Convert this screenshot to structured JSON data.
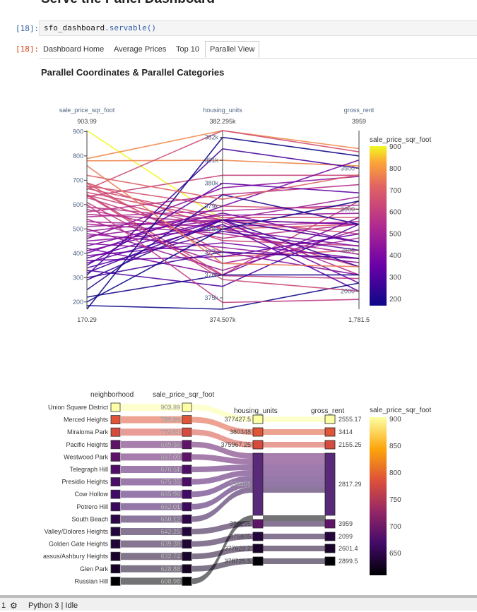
{
  "notebook": {
    "heading": "Serve the Panel Dashboard",
    "in_prompt": "[18]:",
    "out_prompt": "[18]:",
    "code_var": "sfo_dashboard",
    "code_fn": ".servable()"
  },
  "tabs": [
    {
      "label": "Dashboard Home"
    },
    {
      "label": "Average Prices"
    },
    {
      "label": "Top 10"
    },
    {
      "label": "Parallel View",
      "active": true
    }
  ],
  "section_title": "Parallel Coordinates & Parallel Categories",
  "colors": {
    "tab_border": "#cccccc",
    "prompt_in": "#305fa8",
    "prompt_out": "#d84315"
  },
  "chart_data": [
    {
      "type": "parallel_coordinates",
      "colorscale": "plasma",
      "dimensions": [
        {
          "label": "sale_price_sqr_foot",
          "max_label": "903.99",
          "min_label": "170.29",
          "range": [
            170.29,
            903.99
          ],
          "ticks": [
            200,
            300,
            400,
            500,
            600,
            700,
            800,
            900
          ]
        },
        {
          "label": "housing_units",
          "max_label": "382.295k",
          "min_label": "374.507k",
          "range": [
            374507,
            382295
          ],
          "ticks": [
            "375k",
            "376k",
            "377k",
            "378k",
            "379k",
            "380k",
            "381k",
            "382k"
          ]
        },
        {
          "label": "gross_rent",
          "max_label": "3959",
          "min_label": "1,781.5",
          "range": [
            1781.5,
            3959
          ],
          "ticks": [
            2000,
            2500,
            3000,
            3500
          ]
        }
      ],
      "colorbar": {
        "title": "sale_price_sqr_foot",
        "ticks": [
          200,
          300,
          400,
          500,
          600,
          700,
          800,
          900
        ]
      },
      "lines": [
        [
          903.99,
          378401,
          2817.29
        ],
        [
          788.84,
          382295,
          3739
        ],
        [
          779.81,
          381000,
          3528
        ],
        [
          689.56,
          378000,
          2817
        ],
        [
          687.09,
          376800,
          2500
        ],
        [
          676.51,
          379000,
          3000
        ],
        [
          675.35,
          377000,
          2400
        ],
        [
          665.96,
          378500,
          2900
        ],
        [
          662.01,
          382295,
          3700
        ],
        [
          650.12,
          378401,
          2700
        ],
        [
          642.25,
          376000,
          3100
        ],
        [
          639.39,
          378000,
          2300
        ],
        [
          632.74,
          380348,
          3414
        ],
        [
          628.88,
          377500,
          2555
        ],
        [
          608.98,
          375967,
          2155
        ],
        [
          590,
          378401,
          2600
        ],
        [
          580,
          377600,
          2817
        ],
        [
          570,
          379500,
          3300
        ],
        [
          560,
          378300,
          2200
        ],
        [
          550,
          378800,
          3050
        ],
        [
          540,
          376500,
          2650
        ],
        [
          530,
          378100,
          2850
        ],
        [
          520,
          377800,
          2450
        ],
        [
          510,
          378401,
          3150
        ],
        [
          500,
          376200,
          2750
        ],
        [
          490,
          378600,
          2950
        ],
        [
          480,
          377200,
          2350
        ],
        [
          470,
          378401,
          2817
        ],
        [
          460,
          379800,
          3400
        ],
        [
          450,
          378000,
          2550
        ],
        [
          440,
          377000,
          2200
        ],
        [
          430,
          378700,
          2600
        ],
        [
          420,
          376000,
          2900
        ],
        [
          410,
          378401,
          2100
        ],
        [
          400,
          379000,
          3600
        ],
        [
          390,
          377400,
          2400
        ],
        [
          380,
          378401,
          2817
        ],
        [
          370,
          376800,
          2700
        ],
        [
          360,
          378200,
          2000
        ],
        [
          350,
          380000,
          3200
        ],
        [
          340,
          377900,
          2500
        ],
        [
          330,
          375500,
          2817
        ],
        [
          320,
          378401,
          2600
        ],
        [
          310,
          381500,
          3500
        ],
        [
          300,
          377000,
          2400
        ],
        [
          290,
          378401,
          2300
        ],
        [
          250,
          379500,
          2817
        ],
        [
          220,
          376000,
          2200
        ],
        [
          200,
          378000,
          3100
        ],
        [
          185,
          374507,
          2100
        ],
        [
          170.29,
          382000,
          3650
        ],
        [
          760,
          376500,
          2300
        ],
        [
          720,
          379300,
          3420
        ],
        [
          640,
          375800,
          2000
        ],
        [
          600,
          374800,
          1900
        ]
      ]
    },
    {
      "type": "parallel_categories",
      "colorscale": "inferno",
      "dimensions": [
        "neighborhood",
        "sale_price_sqr_foot",
        "housing_units",
        "gross_rent"
      ],
      "neighborhoods": [
        "Union Square District",
        "Merced Heights",
        "Miraloma Park",
        "Pacific Heights",
        "Westwood Park",
        "Telegraph Hill",
        "Presidio Heights",
        "Cow Hollow",
        "Potrero Hill",
        "South Beach",
        "Valley/Dolores Heights",
        "Golden Gate Heights",
        "assus/Ashbury Heights",
        "Glen Park",
        "Russian Hill"
      ],
      "sale_price": [
        "903.99",
        "788.84",
        "779.81",
        "689.56",
        "687.09",
        "676.51",
        "675.35",
        "665.96",
        "662.01",
        "650.12",
        "642.25",
        "639.39",
        "632.74",
        "628.88",
        "608.98"
      ],
      "housing_units": [
        "377427.5",
        "380348",
        "375967.25",
        "378401",
        "382295",
        "375805",
        "377622.2",
        "378725.5"
      ],
      "gross_rent": [
        "2555.17",
        "3414",
        "2155.25",
        "2817.29",
        "3959",
        "2099",
        "2601.4",
        "2899.5"
      ],
      "colorbar": {
        "title": "sale_price_sqr_foot",
        "ticks": [
          650,
          700,
          750,
          800,
          850,
          900
        ]
      }
    }
  ],
  "status": {
    "kernel_count": "1",
    "kernel": "Python 3 | Idle"
  }
}
